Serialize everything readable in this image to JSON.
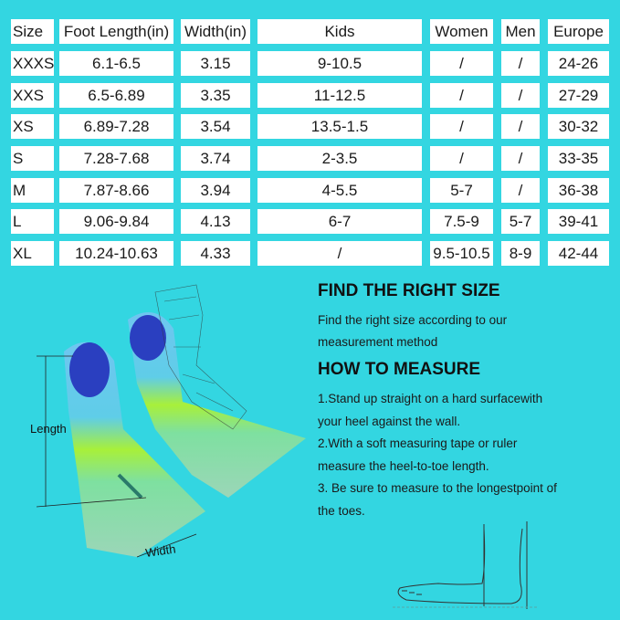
{
  "size_chart": {
    "headers": [
      "Size",
      "Foot Length(in)",
      "Width(in)",
      "Kids",
      "Women",
      "Men",
      "Europe"
    ],
    "rows": [
      [
        "XXXS",
        "6.1-6.5",
        "3.15",
        "9-10.5",
        "/",
        "/",
        "24-26"
      ],
      [
        "XXS",
        "6.5-6.89",
        "3.35",
        "11-12.5",
        "/",
        "/",
        "27-29"
      ],
      [
        "XS",
        "6.89-7.28",
        "3.54",
        "13.5-1.5",
        "/",
        "/",
        "30-32"
      ],
      [
        "S",
        "7.28-7.68",
        "3.74",
        "2-3.5",
        "/",
        "/",
        "33-35"
      ],
      [
        "M",
        "7.87-8.66",
        "3.94",
        "4-5.5",
        "5-7",
        "/",
        "36-38"
      ],
      [
        "L",
        "9.06-9.84",
        "4.13",
        "6-7",
        "7.5-9",
        "5-7",
        "39-41"
      ],
      [
        "XL",
        "10.24-10.63",
        "4.33",
        "/",
        "9.5-10.5",
        "8-9",
        "42-44"
      ]
    ]
  },
  "diagram": {
    "length_label": "Length",
    "width_label": "Width"
  },
  "find_size": {
    "title": "FIND THE RIGHT SIZE",
    "lines": [
      "Find the right size according to our",
      "measurement method"
    ]
  },
  "how_to": {
    "title": "HOW TO MEASURE",
    "lines": [
      "1.Stand up straight on a hard surfacewith",
      "your heel against the wall.",
      "2.With a soft measuring tape or ruler",
      "measure the heel-to-toe length.",
      "3. Be sure to measure to the longestpoint of",
      "the toes."
    ]
  },
  "colors": {
    "background": "#33d6e1",
    "cell": "#ffffff",
    "fin_blue": "#2a3fc0",
    "fin_green": "#a8f03a",
    "fin_sky": "#6fc6f0"
  }
}
